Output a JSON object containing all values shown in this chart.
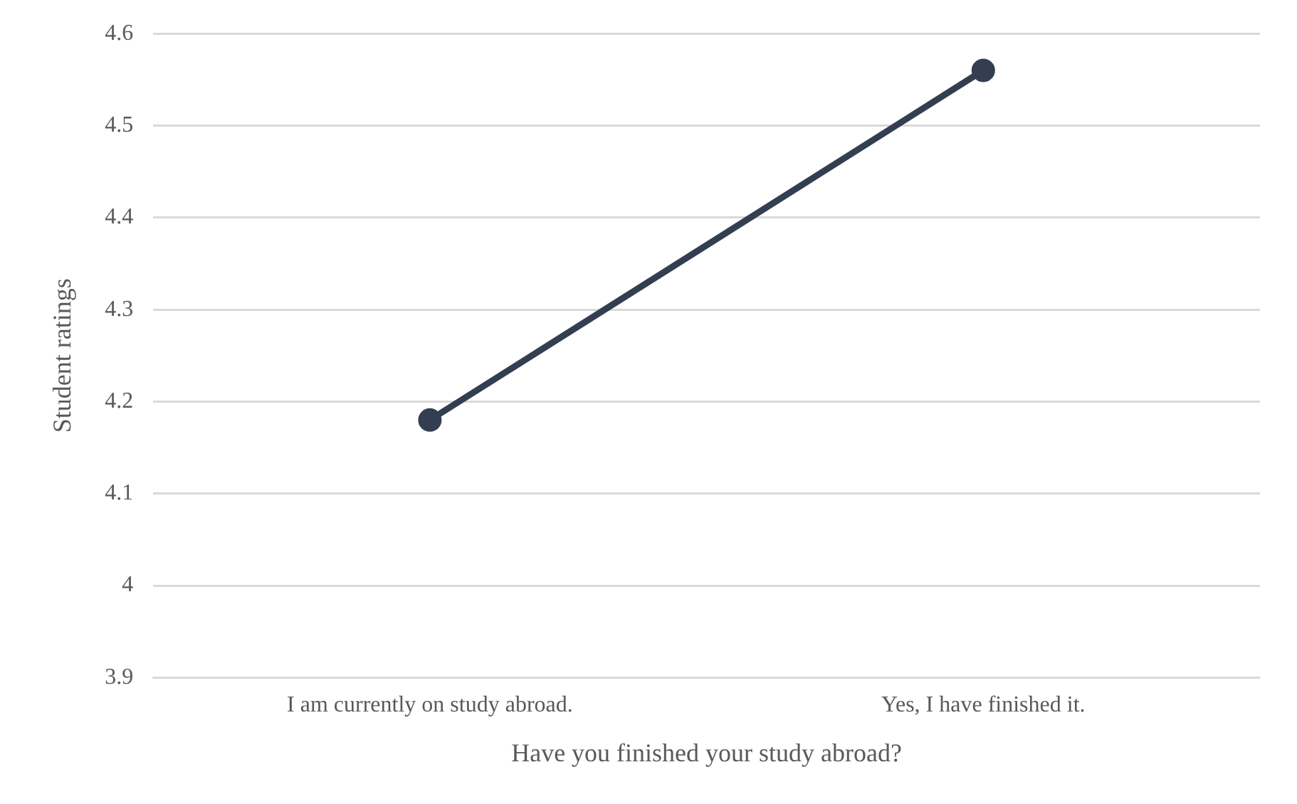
{
  "chart_data": {
    "type": "line",
    "xlabel": "Have you finished your study abroad?",
    "ylabel": "Student ratings",
    "categories": [
      "I am currently on study abroad.",
      "Yes, I have finished it."
    ],
    "series": [
      {
        "color": "#333f50",
        "values": [
          4.18,
          4.56
        ]
      }
    ],
    "ylim": [
      3.9,
      4.6
    ],
    "yticks": [
      3.9,
      4,
      4.1,
      4.2,
      4.3,
      4.4,
      4.5,
      4.6
    ],
    "grid": "y",
    "legend": false,
    "marker": "circle",
    "line_style": "solid"
  }
}
